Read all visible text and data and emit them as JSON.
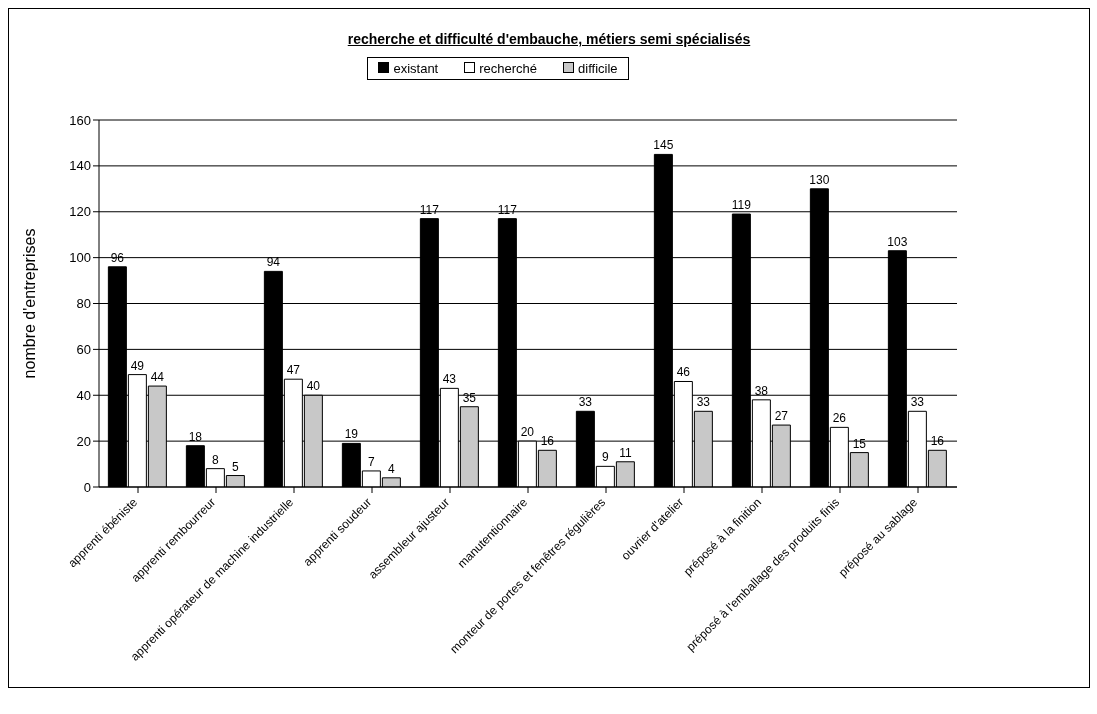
{
  "chart_data": {
    "type": "bar",
    "title": "recherche et difficulté d'embauche, métiers semi spécialisés",
    "ylabel": "nombre d'entreprises",
    "categories": [
      "apprenti ébéniste",
      "apprenti rembourreur",
      "apprenti opérateur de machine industrielle",
      "apprenti soudeur",
      "assembleur ajusteur",
      "manutentionnaire",
      "monteur de portes et fenêtres régulières",
      "ouvrier d'atelier",
      "préposé à la finition",
      "préposé à l'emballage des produits finis",
      "préposé au sablage"
    ],
    "series": [
      {
        "name": "existant",
        "color": "#000000",
        "values": [
          96,
          18,
          94,
          19,
          117,
          117,
          33,
          145,
          119,
          130,
          103
        ]
      },
      {
        "name": "recherché",
        "color": "#ffffff",
        "values": [
          49,
          8,
          47,
          7,
          43,
          20,
          9,
          46,
          38,
          26,
          33
        ]
      },
      {
        "name": "difficile",
        "color": "#c8c8c8",
        "values": [
          44,
          5,
          40,
          4,
          35,
          16,
          11,
          33,
          27,
          15,
          16
        ]
      }
    ],
    "ylim": [
      0,
      160
    ],
    "yticks": [
      0,
      20,
      40,
      60,
      80,
      100,
      120,
      140,
      160
    ],
    "grid": "y",
    "legend": "top",
    "data_labels": true
  }
}
